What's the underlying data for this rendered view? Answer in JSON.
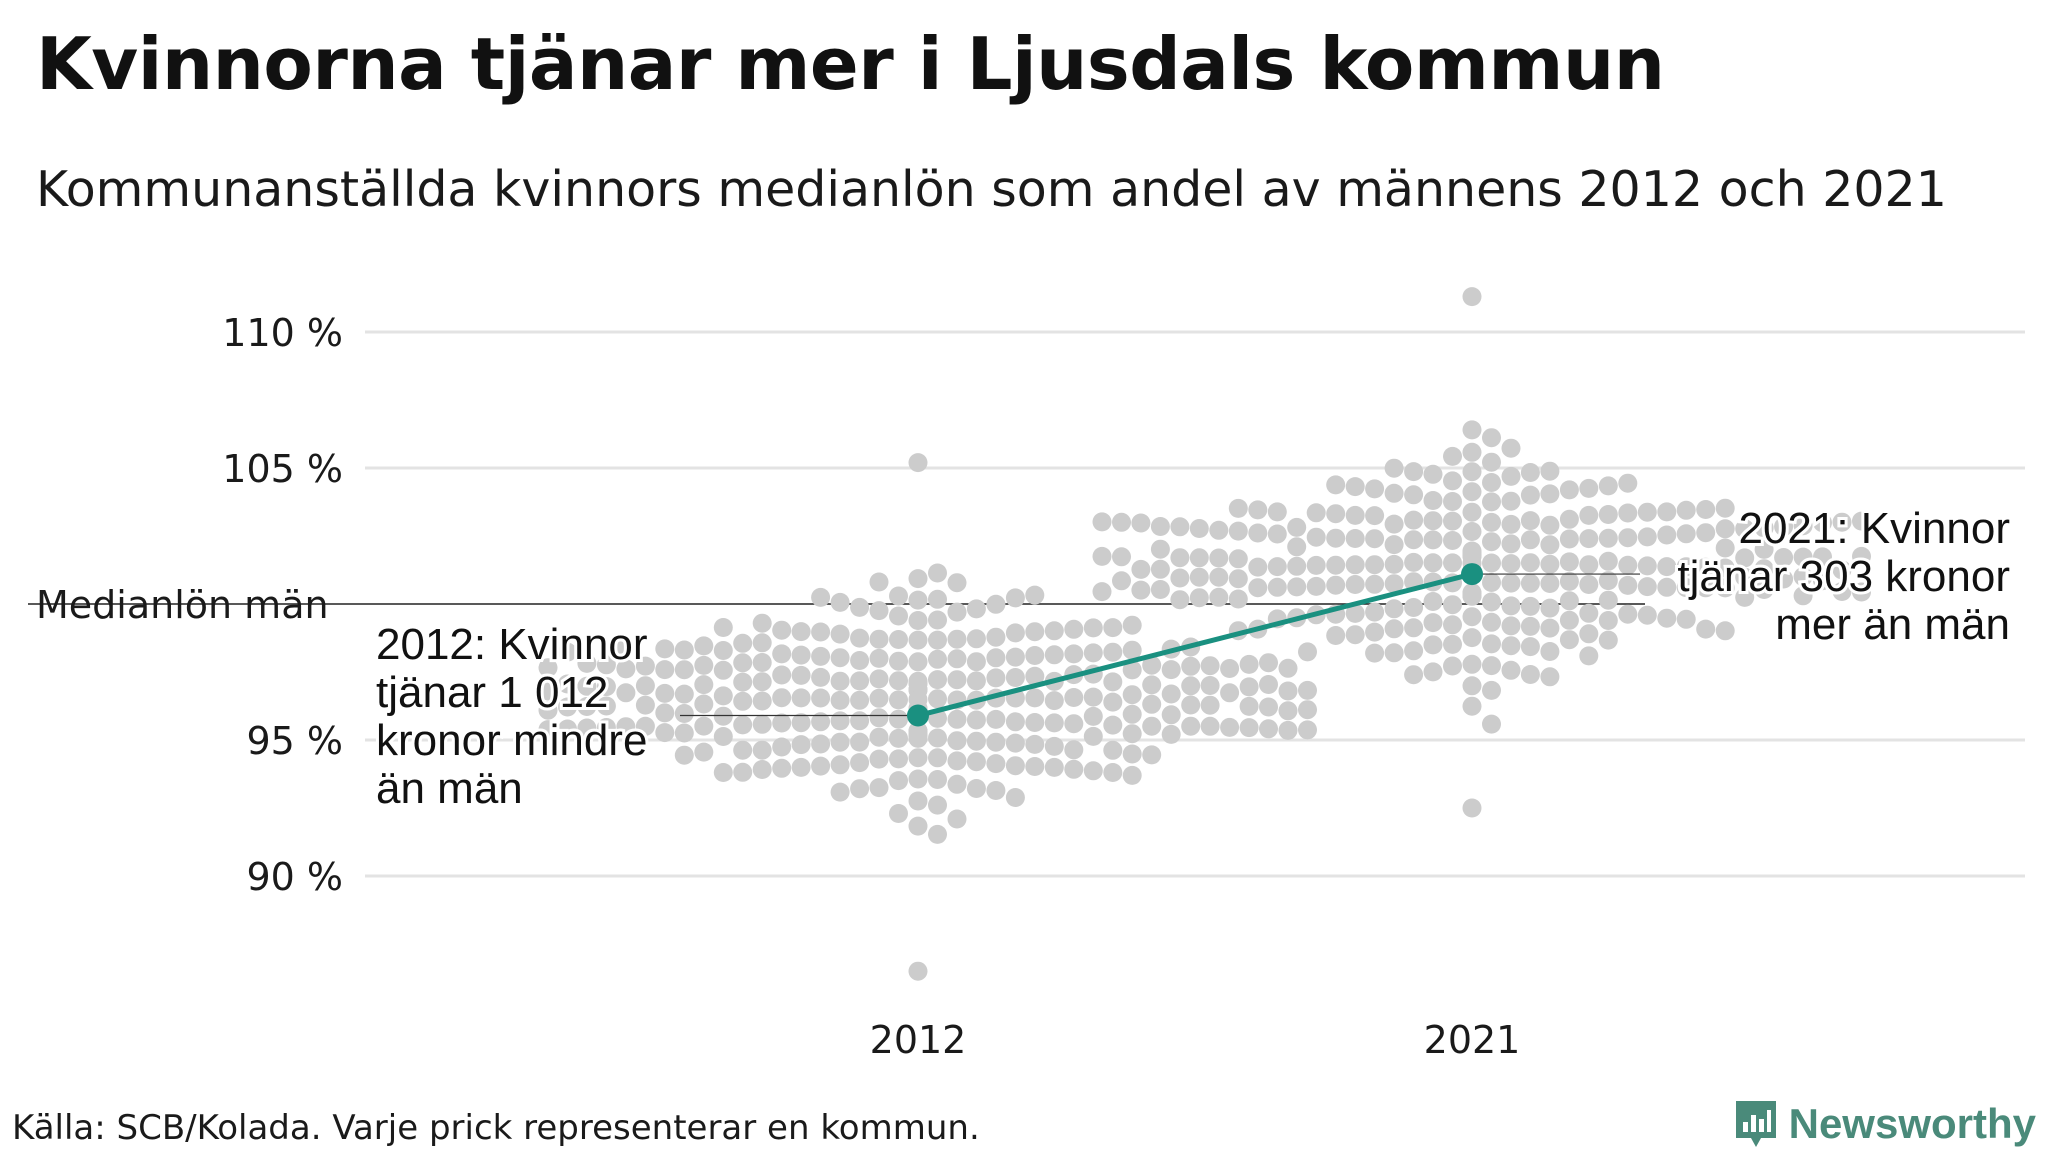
{
  "title": "Kvinnorna tjänar mer i Ljusdals kommun",
  "subtitle": "Kommunanställda kvinnors medianlön som andel av männens 2012 och 2021",
  "footer": "Källa: SCB/Kolada. Varje prick representerar en kommun.",
  "brand": "Newsworthy",
  "colors": {
    "highlight": "#1a9080",
    "dots": "#cccccc",
    "grid": "#e3e3e3",
    "reference": "#222222"
  },
  "chart_data": {
    "type": "scatter",
    "xlabel": "",
    "ylabel": "",
    "categories": [
      "2012",
      "2021"
    ],
    "ylim": [
      85,
      112
    ],
    "y_ticks": [
      {
        "value": 90,
        "label": "90 %"
      },
      {
        "value": 95,
        "label": "95 %"
      },
      {
        "value": 105,
        "label": "105 %"
      },
      {
        "value": 110,
        "label": "110 %"
      }
    ],
    "reference_line": {
      "value": 100,
      "label": "Medianlön män"
    },
    "grid": true,
    "highlight_series": {
      "points": [
        {
          "x": "2012",
          "y": 95.9
        },
        {
          "x": "2021",
          "y": 101.1
        }
      ],
      "annotations": [
        "2012: Kvinnor\ntjänar 1 012\nkronor mindre\nän män",
        "2021: Kvinnor\ntjänar 303 kronor\nmer än män"
      ]
    },
    "distribution_2012": {
      "n": 290,
      "min": 86.5,
      "max": 105.2,
      "median": 96.5
    },
    "distribution_2021": {
      "n": 290,
      "min": 92.5,
      "max": 111.3,
      "median": 101.5
    }
  }
}
